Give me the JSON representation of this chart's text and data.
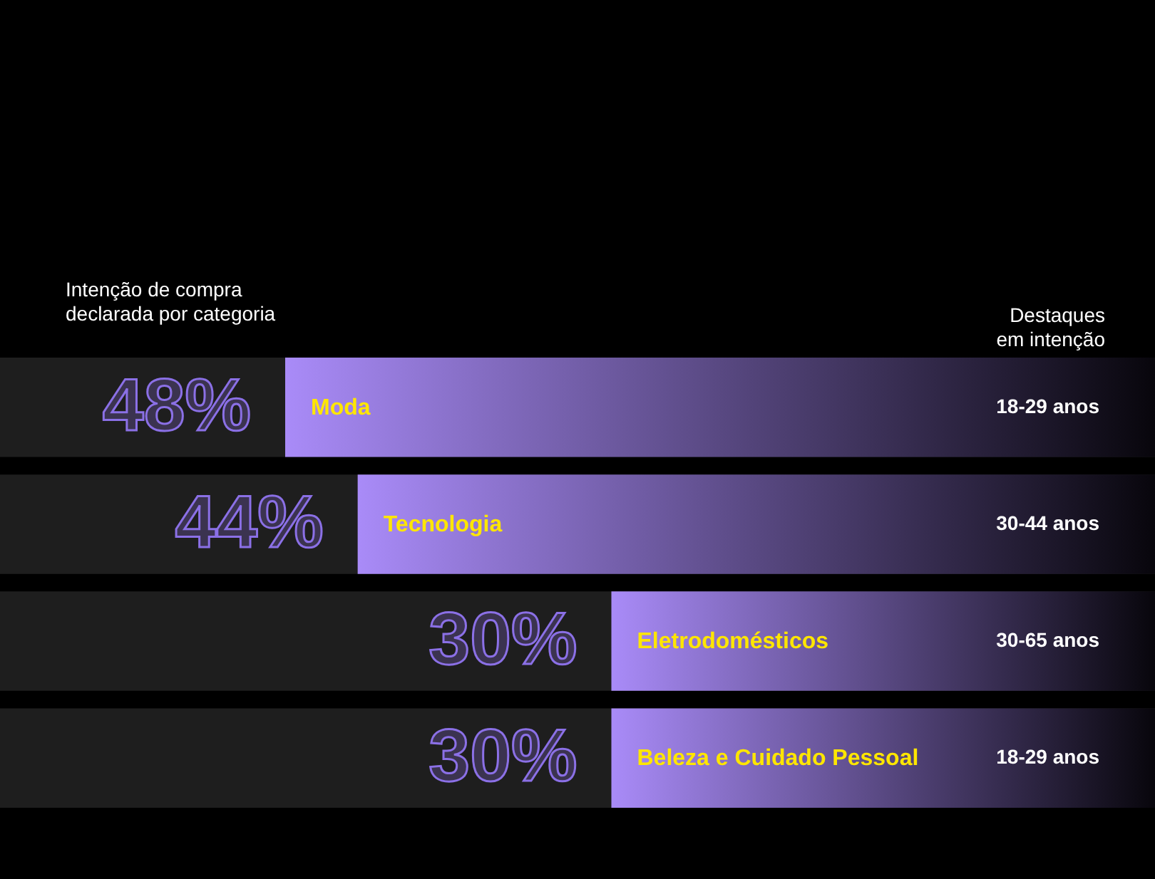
{
  "chart_data": {
    "type": "bar",
    "orientation": "horizontal",
    "title": "Intenção de compra declarada por categoria",
    "categories": [
      "Moda",
      "Tecnologia",
      "Eletrodomésticos",
      "Beleza e Cuidado Pessoal"
    ],
    "values": [
      48,
      44,
      30,
      30
    ],
    "value_labels": [
      "48%",
      "44%",
      "30%",
      "30%"
    ],
    "color": "#a98bf8",
    "annotations": [
      "Destaques em intenção",
      {
        "text": "18-29 anos",
        "y": "Moda"
      },
      {
        "text": "30-44 anos",
        "y": "Tecnologia"
      },
      {
        "text": "30-65 anos",
        "y": "Eletrodomésticos"
      },
      {
        "text": "18-29 anos",
        "y": "Beleza e Cuidado Pessoal"
      }
    ],
    "tick_labels": "y"
  }
}
